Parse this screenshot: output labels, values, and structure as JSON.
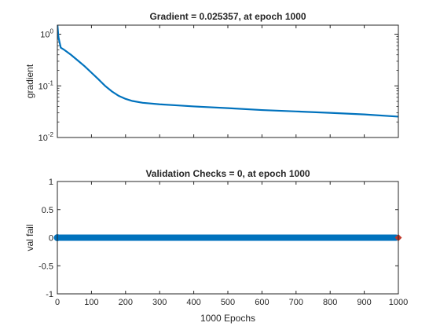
{
  "chart_data": [
    {
      "type": "line",
      "title": "Gradient = 0.025357, at epoch 1000",
      "xlabel": "",
      "ylabel": "gradient",
      "yscale": "log",
      "xlim": [
        0,
        1000
      ],
      "ylim": [
        0.01,
        1.5
      ],
      "yticks": [
        {
          "value": 0.01,
          "base": "10",
          "exp": "-2"
        },
        {
          "value": 0.1,
          "base": "10",
          "exp": "-1"
        },
        {
          "value": 1,
          "base": "10",
          "exp": "0"
        }
      ],
      "grid": false,
      "series": [
        {
          "color": "#0072BD",
          "x": [
            0,
            3,
            6,
            10,
            20,
            40,
            60,
            80,
            100,
            120,
            140,
            160,
            180,
            200,
            220,
            250,
            300,
            350,
            400,
            500,
            600,
            700,
            800,
            900,
            1000
          ],
          "y": [
            1.6,
            0.9,
            0.72,
            0.55,
            0.5,
            0.4,
            0.31,
            0.24,
            0.18,
            0.135,
            0.1,
            0.078,
            0.064,
            0.056,
            0.051,
            0.047,
            0.044,
            0.042,
            0.04,
            0.037,
            0.034,
            0.032,
            0.03,
            0.028,
            0.025357
          ]
        }
      ]
    },
    {
      "type": "scatter",
      "title": "Validation Checks = 0, at epoch 1000",
      "xlabel": "1000 Epochs",
      "ylabel": "val fail",
      "xlim": [
        0,
        1000
      ],
      "ylim": [
        -1,
        1
      ],
      "xticks": [
        0,
        100,
        200,
        300,
        400,
        500,
        600,
        700,
        800,
        900,
        1000
      ],
      "yticks": [
        -1,
        -0.5,
        0,
        0.5,
        1
      ],
      "grid": false,
      "series": [
        {
          "color": "#0072BD",
          "x_start": 0,
          "x_end": 1000,
          "y": 0
        }
      ],
      "highlight": {
        "x": 1000,
        "y": 0,
        "color": "#C0392B"
      }
    }
  ]
}
